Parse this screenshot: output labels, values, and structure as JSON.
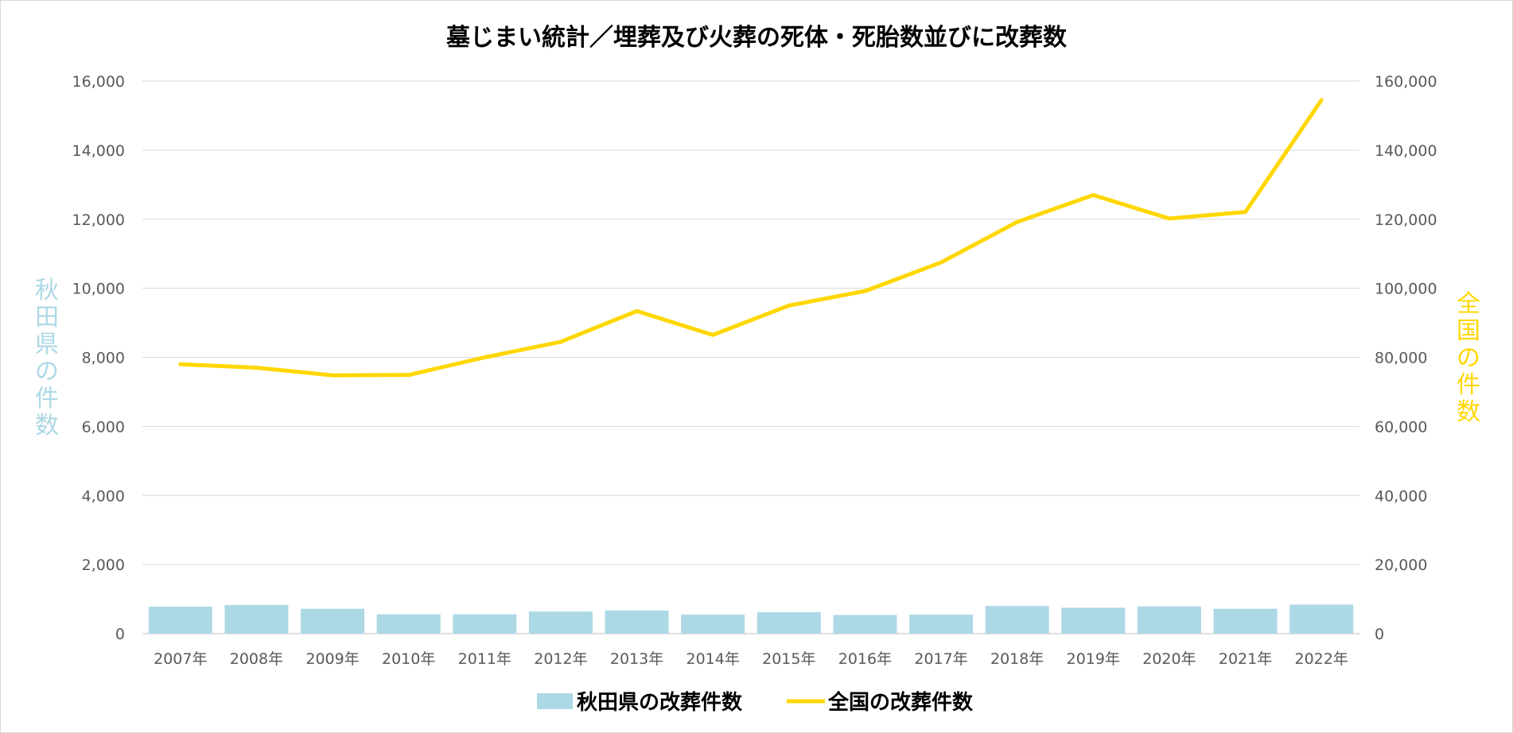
{
  "chart_data": {
    "type": "bar+line",
    "title": "墓じまい統計／埋葬及び火葬の死体・死胎数並びに改葬数",
    "categories": [
      "2007年",
      "2008年",
      "2009年",
      "2010年",
      "2011年",
      "2012年",
      "2013年",
      "2014年",
      "2015年",
      "2016年",
      "2017年",
      "2018年",
      "2019年",
      "2020年",
      "2021年",
      "2022年"
    ],
    "y_left": {
      "label": "秋田県の件数",
      "ylim": [
        0,
        16000
      ],
      "ticks": [
        "0",
        "2,000",
        "4,000",
        "6,000",
        "8,000",
        "10,000",
        "12,000",
        "14,000",
        "16,000"
      ]
    },
    "y_right": {
      "label": "全国の件数",
      "ylim": [
        0,
        160000
      ],
      "ticks": [
        "0",
        "20,000",
        "40,000",
        "60,000",
        "80,000",
        "100,000",
        "120,000",
        "140,000",
        "160,000"
      ]
    },
    "series": [
      {
        "name": "秋田県の改葬件数",
        "type": "bar",
        "axis": "left",
        "color": "#add8e6",
        "values": [
          780,
          830,
          720,
          560,
          560,
          640,
          670,
          550,
          620,
          540,
          550,
          800,
          750,
          790,
          720,
          840
        ]
      },
      {
        "name": "全国の改葬件数",
        "type": "line",
        "axis": "right",
        "color": "#ffd700",
        "values": [
          78000,
          77000,
          74800,
          74900,
          80000,
          84500,
          93400,
          86500,
          95000,
          99200,
          107500,
          119200,
          127000,
          120200,
          122100,
          154500
        ]
      }
    ],
    "grid": true,
    "legend_position": "bottom"
  }
}
